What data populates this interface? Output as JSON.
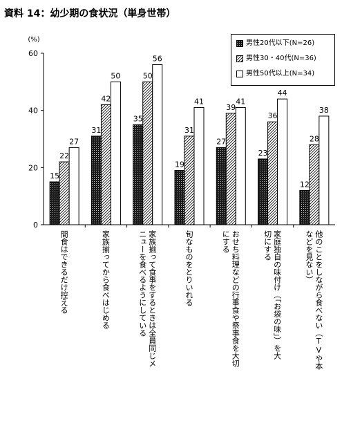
{
  "chart_data": {
    "type": "bar",
    "title": "資料 14：幼少期の食状況（単身世帯）",
    "ylabel": "(%)",
    "ylim": [
      0,
      60
    ],
    "yticks": [
      0,
      20,
      40,
      60
    ],
    "grid": false,
    "legend_position": "top-right",
    "categories": [
      [
        "間食はできるだけ控える"
      ],
      [
        "家族揃ってから食べはじめる"
      ],
      [
        "家族揃って食事をするときは全員同じメ",
        "ニューを食べるようにしている"
      ],
      [
        "旬なものをとりいれる"
      ],
      [
        "おせち料理などの行事食や祭事食を大切",
        "にする"
      ],
      [
        "家庭独自の味付け（「お袋の味」）を大",
        "切にする"
      ],
      [
        "他のことをしながら食べない（TVや本",
        "などを見ない）"
      ]
    ],
    "series": [
      {
        "name": "男性20代以下(N=26)",
        "pattern": "dark-dotted",
        "values": [
          15,
          31,
          35,
          19,
          27,
          23,
          12
        ]
      },
      {
        "name": "男性30・40代(N=36)",
        "pattern": "diagonal-hatch",
        "values": [
          22,
          42,
          50,
          31,
          39,
          36,
          28
        ]
      },
      {
        "name": "男性50代以上(N=34)",
        "pattern": "white",
        "values": [
          27,
          50,
          56,
          41,
          41,
          44,
          38
        ]
      }
    ]
  }
}
